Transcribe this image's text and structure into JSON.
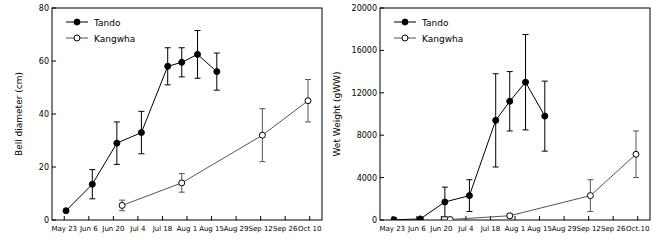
{
  "chart_data": [
    {
      "type": "line",
      "y_label": "Bell diameter (cm)",
      "legend": "upper left",
      "xlim": [
        -7,
        147
      ],
      "xticks": [
        {
          "value": 0,
          "label": "May 23"
        },
        {
          "value": 14,
          "label": "Jun 6"
        },
        {
          "value": 28,
          "label": "Jun 20"
        },
        {
          "value": 42,
          "label": "Jul 4"
        },
        {
          "value": 56,
          "label": "Jul 18"
        },
        {
          "value": 70,
          "label": "Aug 1"
        },
        {
          "value": 84,
          "label": "Aug 15"
        },
        {
          "value": 98,
          "label": "Aug 29"
        },
        {
          "value": 112,
          "label": "Sep 12"
        },
        {
          "value": 126,
          "label": "Sep 26"
        },
        {
          "value": 140,
          "label": "Oct 10"
        }
      ],
      "ylim": [
        0,
        80
      ],
      "yticks": [
        0,
        20,
        40,
        60,
        80
      ],
      "series": [
        {
          "name": "Tando",
          "color": "#000000",
          "marker": "filled",
          "x": [
            1,
            16,
            30,
            44,
            59,
            67,
            76,
            87
          ],
          "values": [
            3.5,
            13.5,
            29,
            33,
            58,
            59.5,
            62.5,
            56
          ],
          "errors": [
            0.5,
            5.5,
            8,
            8,
            7,
            5.5,
            9,
            7
          ]
        },
        {
          "name": "Kangwha",
          "color": "#555555",
          "marker": "open",
          "x": [
            33,
            67,
            113,
            139
          ],
          "values": [
            5.5,
            14,
            32,
            45
          ],
          "errors": [
            2,
            3.5,
            10,
            8
          ]
        }
      ]
    },
    {
      "type": "line",
      "y_label": "Wet Weight (gWW)",
      "legend": "upper left",
      "xlim": [
        -7,
        147
      ],
      "xticks": [
        {
          "value": 0,
          "label": "May 23"
        },
        {
          "value": 14,
          "label": "Jun 6"
        },
        {
          "value": 28,
          "label": "Jun 20"
        },
        {
          "value": 42,
          "label": "Jul 4"
        },
        {
          "value": 56,
          "label": "Jul 18"
        },
        {
          "value": 70,
          "label": "Aug 1"
        },
        {
          "value": 84,
          "label": "Aug 15"
        },
        {
          "value": 98,
          "label": "Aug 29"
        },
        {
          "value": 112,
          "label": "Sep 12"
        },
        {
          "value": 126,
          "label": "Sep 26"
        },
        {
          "value": 140,
          "label": "Oct.10"
        }
      ],
      "ylim": [
        0,
        20000
      ],
      "yticks": [
        0,
        4000,
        8000,
        12000,
        16000,
        20000
      ],
      "series": [
        {
          "name": "Tando",
          "color": "#000000",
          "marker": "filled",
          "x": [
            1,
            16,
            30,
            44,
            59,
            67,
            76,
            87
          ],
          "values": [
            20,
            100,
            1700,
            2300,
            9400,
            11200,
            13000,
            9800
          ],
          "errors": [
            20,
            100,
            1400,
            1500,
            4400,
            2800,
            4500,
            3300
          ]
        },
        {
          "name": "Kangwha",
          "color": "#555555",
          "marker": "open",
          "x": [
            33,
            67,
            113,
            139
          ],
          "values": [
            50,
            400,
            2300,
            6200
          ],
          "errors": [
            50,
            200,
            1500,
            2200
          ]
        }
      ]
    }
  ]
}
